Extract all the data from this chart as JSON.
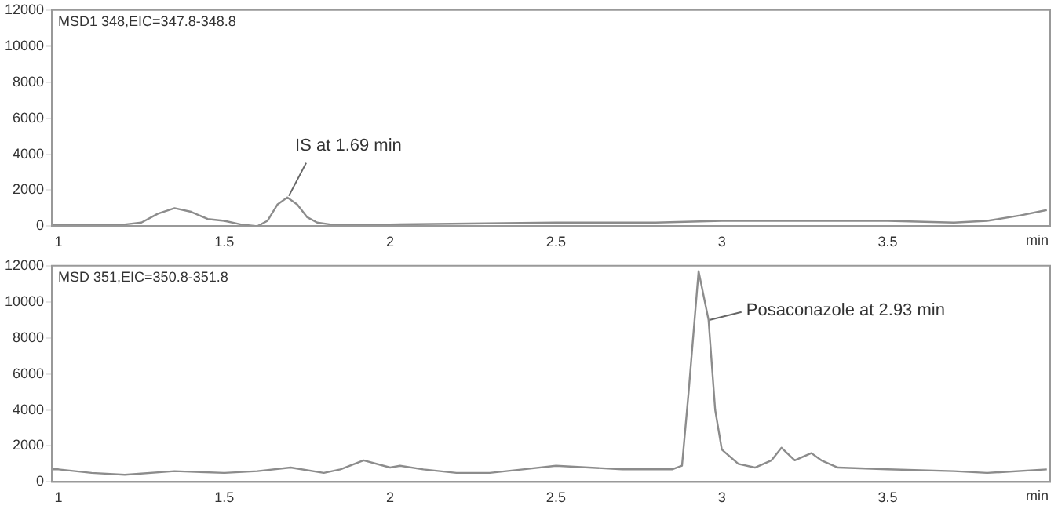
{
  "chart_data": [
    {
      "type": "line",
      "title": "MSD1 348,EIC=347.8-348.8",
      "xlabel": "min",
      "xlim": [
        0.98,
        3.99
      ],
      "ylim": [
        0,
        12000
      ],
      "xticks": [
        1,
        1.5,
        2,
        2.5,
        3,
        3.5
      ],
      "yticks": [
        0,
        2000,
        4000,
        6000,
        8000,
        10000,
        12000
      ],
      "grid": false,
      "legend": false,
      "marker": "none",
      "annotations": [
        {
          "text": "IS at 1.69 min",
          "x": 1.69,
          "y": 1600
        }
      ],
      "series": [
        {
          "color": "#8c8c8c",
          "x": [
            0.98,
            1.2,
            1.25,
            1.3,
            1.35,
            1.4,
            1.45,
            1.5,
            1.55,
            1.6,
            1.63,
            1.66,
            1.69,
            1.72,
            1.75,
            1.78,
            1.82,
            2.0,
            2.5,
            2.8,
            3.0,
            3.2,
            3.4,
            3.5,
            3.7,
            3.8,
            3.9,
            3.98
          ],
          "values": [
            100,
            100,
            200,
            700,
            1000,
            800,
            400,
            300,
            100,
            0,
            300,
            1200,
            1600,
            1200,
            500,
            200,
            100,
            100,
            200,
            200,
            300,
            300,
            300,
            300,
            200,
            300,
            600,
            900
          ]
        }
      ]
    },
    {
      "type": "line",
      "title": "MSD 351,EIC=350.8-351.8",
      "xlabel": "min",
      "xlim": [
        0.98,
        3.99
      ],
      "ylim": [
        0,
        12000
      ],
      "xticks": [
        1,
        1.5,
        2,
        2.5,
        3,
        3.5
      ],
      "yticks": [
        0,
        2000,
        4000,
        6000,
        8000,
        10000,
        12000
      ],
      "grid": false,
      "legend": false,
      "marker": "none",
      "annotations": [
        {
          "text": "Posaconazole at 2.93 min",
          "x": 2.96,
          "y": 9000
        }
      ],
      "series": [
        {
          "color": "#8c8c8c",
          "x": [
            0.98,
            1.0,
            1.1,
            1.2,
            1.35,
            1.5,
            1.6,
            1.7,
            1.8,
            1.85,
            1.92,
            2.0,
            2.03,
            2.1,
            2.2,
            2.3,
            2.4,
            2.5,
            2.7,
            2.85,
            2.88,
            2.9,
            2.93,
            2.96,
            2.98,
            3.0,
            3.05,
            3.1,
            3.15,
            3.18,
            3.22,
            3.27,
            3.3,
            3.35,
            3.5,
            3.7,
            3.8,
            3.98
          ],
          "values": [
            700,
            700,
            500,
            400,
            600,
            500,
            600,
            800,
            500,
            700,
            1200,
            800,
            900,
            700,
            500,
            500,
            700,
            900,
            700,
            700,
            900,
            5000,
            11700,
            9000,
            4000,
            1800,
            1000,
            800,
            1200,
            1900,
            1200,
            1600,
            1200,
            800,
            700,
            600,
            500,
            700
          ]
        }
      ]
    }
  ]
}
